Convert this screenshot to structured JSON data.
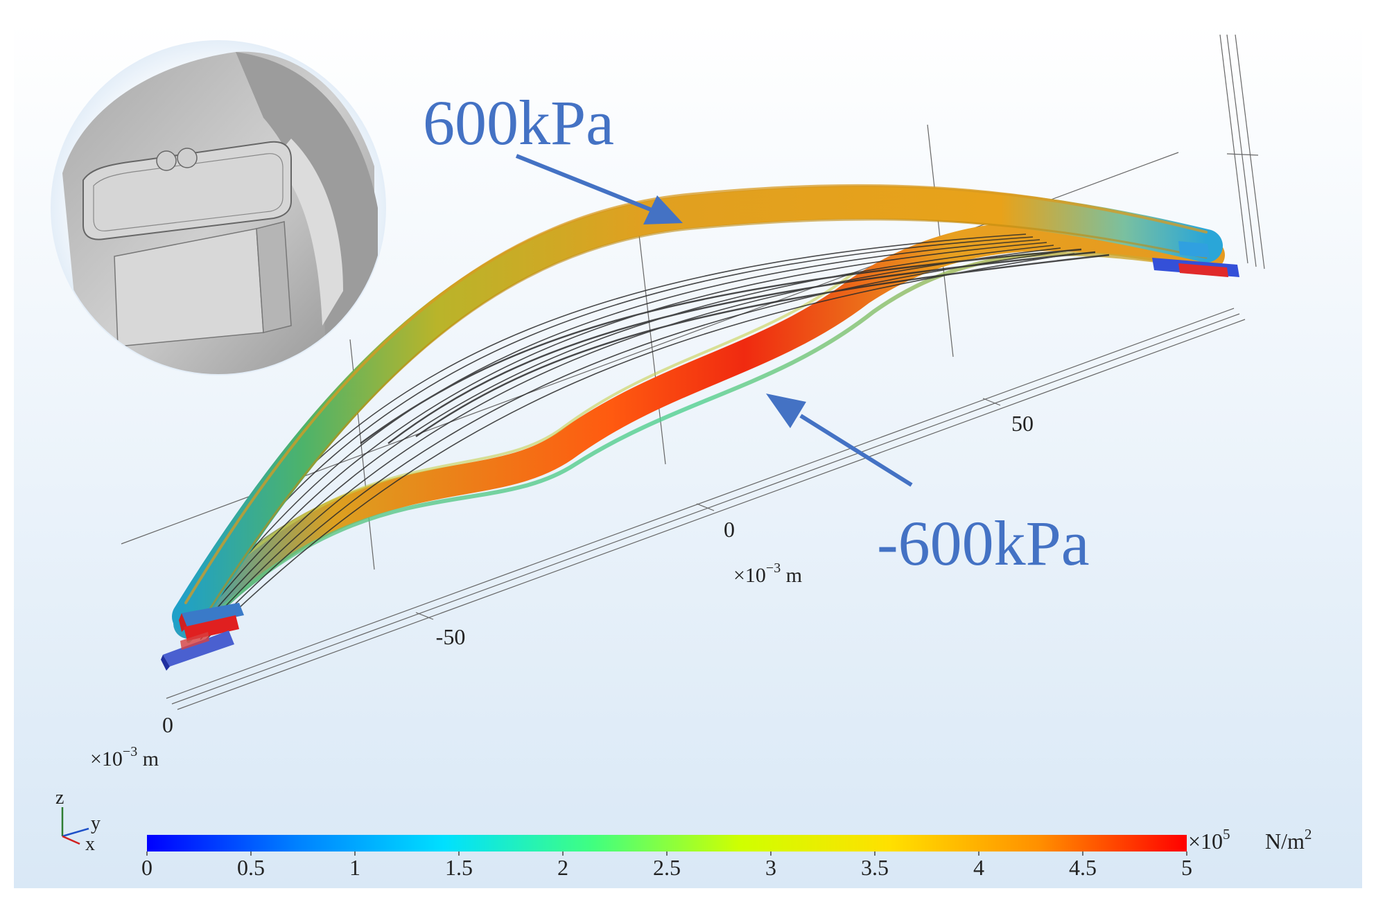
{
  "annotations": {
    "positive_pressure": "600kPa",
    "negative_pressure": "-600kPa"
  },
  "axis_labels": {
    "y_zero": "0",
    "y_unit_prefix": "×10",
    "y_unit_exp": "−3",
    "y_unit_suffix": " m",
    "x_minus": "-50",
    "x_zero": "0",
    "x_plus": "50",
    "x_unit_prefix": "×10",
    "x_unit_exp": "−3",
    "x_unit_suffix": " m"
  },
  "triad": {
    "z": "z",
    "y": "y",
    "x": "x"
  },
  "colorbar": {
    "ticks": [
      "0",
      "0.5",
      "1",
      "1.5",
      "2",
      "2.5",
      "3",
      "3.5",
      "4",
      "4.5",
      "5"
    ],
    "multiplier_prefix": "×10",
    "multiplier_exp": "5",
    "unit_prefix": "N/m",
    "unit_exp": "2",
    "colors": [
      "#0000ff",
      "#0080ff",
      "#00e0ff",
      "#40ff80",
      "#d0ff00",
      "#ffe000",
      "#ff9000",
      "#ff0000"
    ]
  },
  "colors": {
    "annotation": "#4472c4",
    "background_top": "#ffffff",
    "background_bottom": "#d9e8f6"
  }
}
